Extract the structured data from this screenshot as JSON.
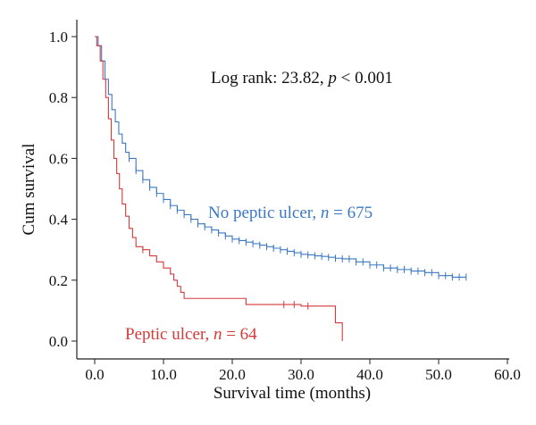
{
  "chart_data": {
    "type": "line",
    "subtype": "kaplan-meier",
    "xlabel": "Survival time (months)",
    "ylabel": "Cum survival",
    "xlim": [
      0,
      60
    ],
    "ylim": [
      0,
      1.0
    ],
    "x_ticks": [
      "0.0",
      "10.0",
      "20.0",
      "30.0",
      "40.0",
      "50.0",
      "60.0"
    ],
    "y_ticks": [
      "0.0",
      "0.2",
      "0.4",
      "0.6",
      "0.8",
      "1.0"
    ],
    "grid": false,
    "annotation": {
      "prefix": "Log rank: 23.82, ",
      "p_symbol": "p",
      "suffix": " < 0.001"
    },
    "series": [
      {
        "name": "No peptic ulcer",
        "label_prefix": "No peptic ulcer, ",
        "n_symbol": "n",
        "label_suffix": " = 675",
        "color": "#3b78c4",
        "x": [
          0,
          0.5,
          1,
          1.5,
          2,
          2.5,
          3,
          3.5,
          4,
          4.5,
          5,
          6,
          7,
          8,
          9,
          10,
          11,
          12,
          13,
          14,
          15,
          16,
          17,
          18,
          19,
          20,
          21,
          22,
          23,
          24,
          25,
          26,
          27,
          28,
          29,
          30,
          31,
          32,
          33,
          34,
          35,
          36,
          38,
          40,
          42,
          44,
          46,
          48,
          50,
          52,
          54
        ],
        "y": [
          1.0,
          0.97,
          0.92,
          0.86,
          0.81,
          0.76,
          0.72,
          0.68,
          0.65,
          0.62,
          0.6,
          0.56,
          0.53,
          0.505,
          0.485,
          0.465,
          0.445,
          0.43,
          0.415,
          0.4,
          0.385,
          0.375,
          0.365,
          0.355,
          0.345,
          0.335,
          0.33,
          0.325,
          0.32,
          0.315,
          0.31,
          0.305,
          0.3,
          0.295,
          0.29,
          0.285,
          0.283,
          0.28,
          0.278,
          0.275,
          0.272,
          0.27,
          0.26,
          0.25,
          0.24,
          0.235,
          0.23,
          0.225,
          0.215,
          0.21,
          0.21
        ],
        "censored_x": [
          5,
          6,
          7,
          8,
          9,
          10,
          11,
          12,
          13,
          14,
          15,
          16,
          17,
          18,
          19,
          20,
          21,
          22,
          23,
          24,
          25,
          26,
          27,
          28,
          29,
          30,
          31,
          32,
          33,
          34,
          35,
          36,
          37,
          38,
          39,
          40,
          41,
          42,
          43,
          44,
          45,
          46,
          47,
          48,
          49,
          50,
          51,
          52,
          53,
          54
        ]
      },
      {
        "name": "Peptic ulcer",
        "label_prefix": "Peptic ulcer, ",
        "n_symbol": "n",
        "label_suffix": " = 64",
        "color": "#d43a3a",
        "x": [
          0,
          0.3,
          0.8,
          1.2,
          1.6,
          2.0,
          2.4,
          2.8,
          3.2,
          3.6,
          4.0,
          4.5,
          5.0,
          5.5,
          6.0,
          7.0,
          8.0,
          9.0,
          10.0,
          11.0,
          11.5,
          12.0,
          12.5,
          13.0,
          22.0,
          30.0,
          35.0,
          36.0
        ],
        "y": [
          1.0,
          0.97,
          0.92,
          0.86,
          0.8,
          0.73,
          0.66,
          0.6,
          0.55,
          0.5,
          0.45,
          0.41,
          0.37,
          0.34,
          0.31,
          0.3,
          0.28,
          0.26,
          0.24,
          0.22,
          0.2,
          0.18,
          0.16,
          0.14,
          0.12,
          0.115,
          0.06,
          0.0
        ],
        "censored_x": [
          7,
          27.5,
          29,
          31
        ]
      }
    ]
  }
}
